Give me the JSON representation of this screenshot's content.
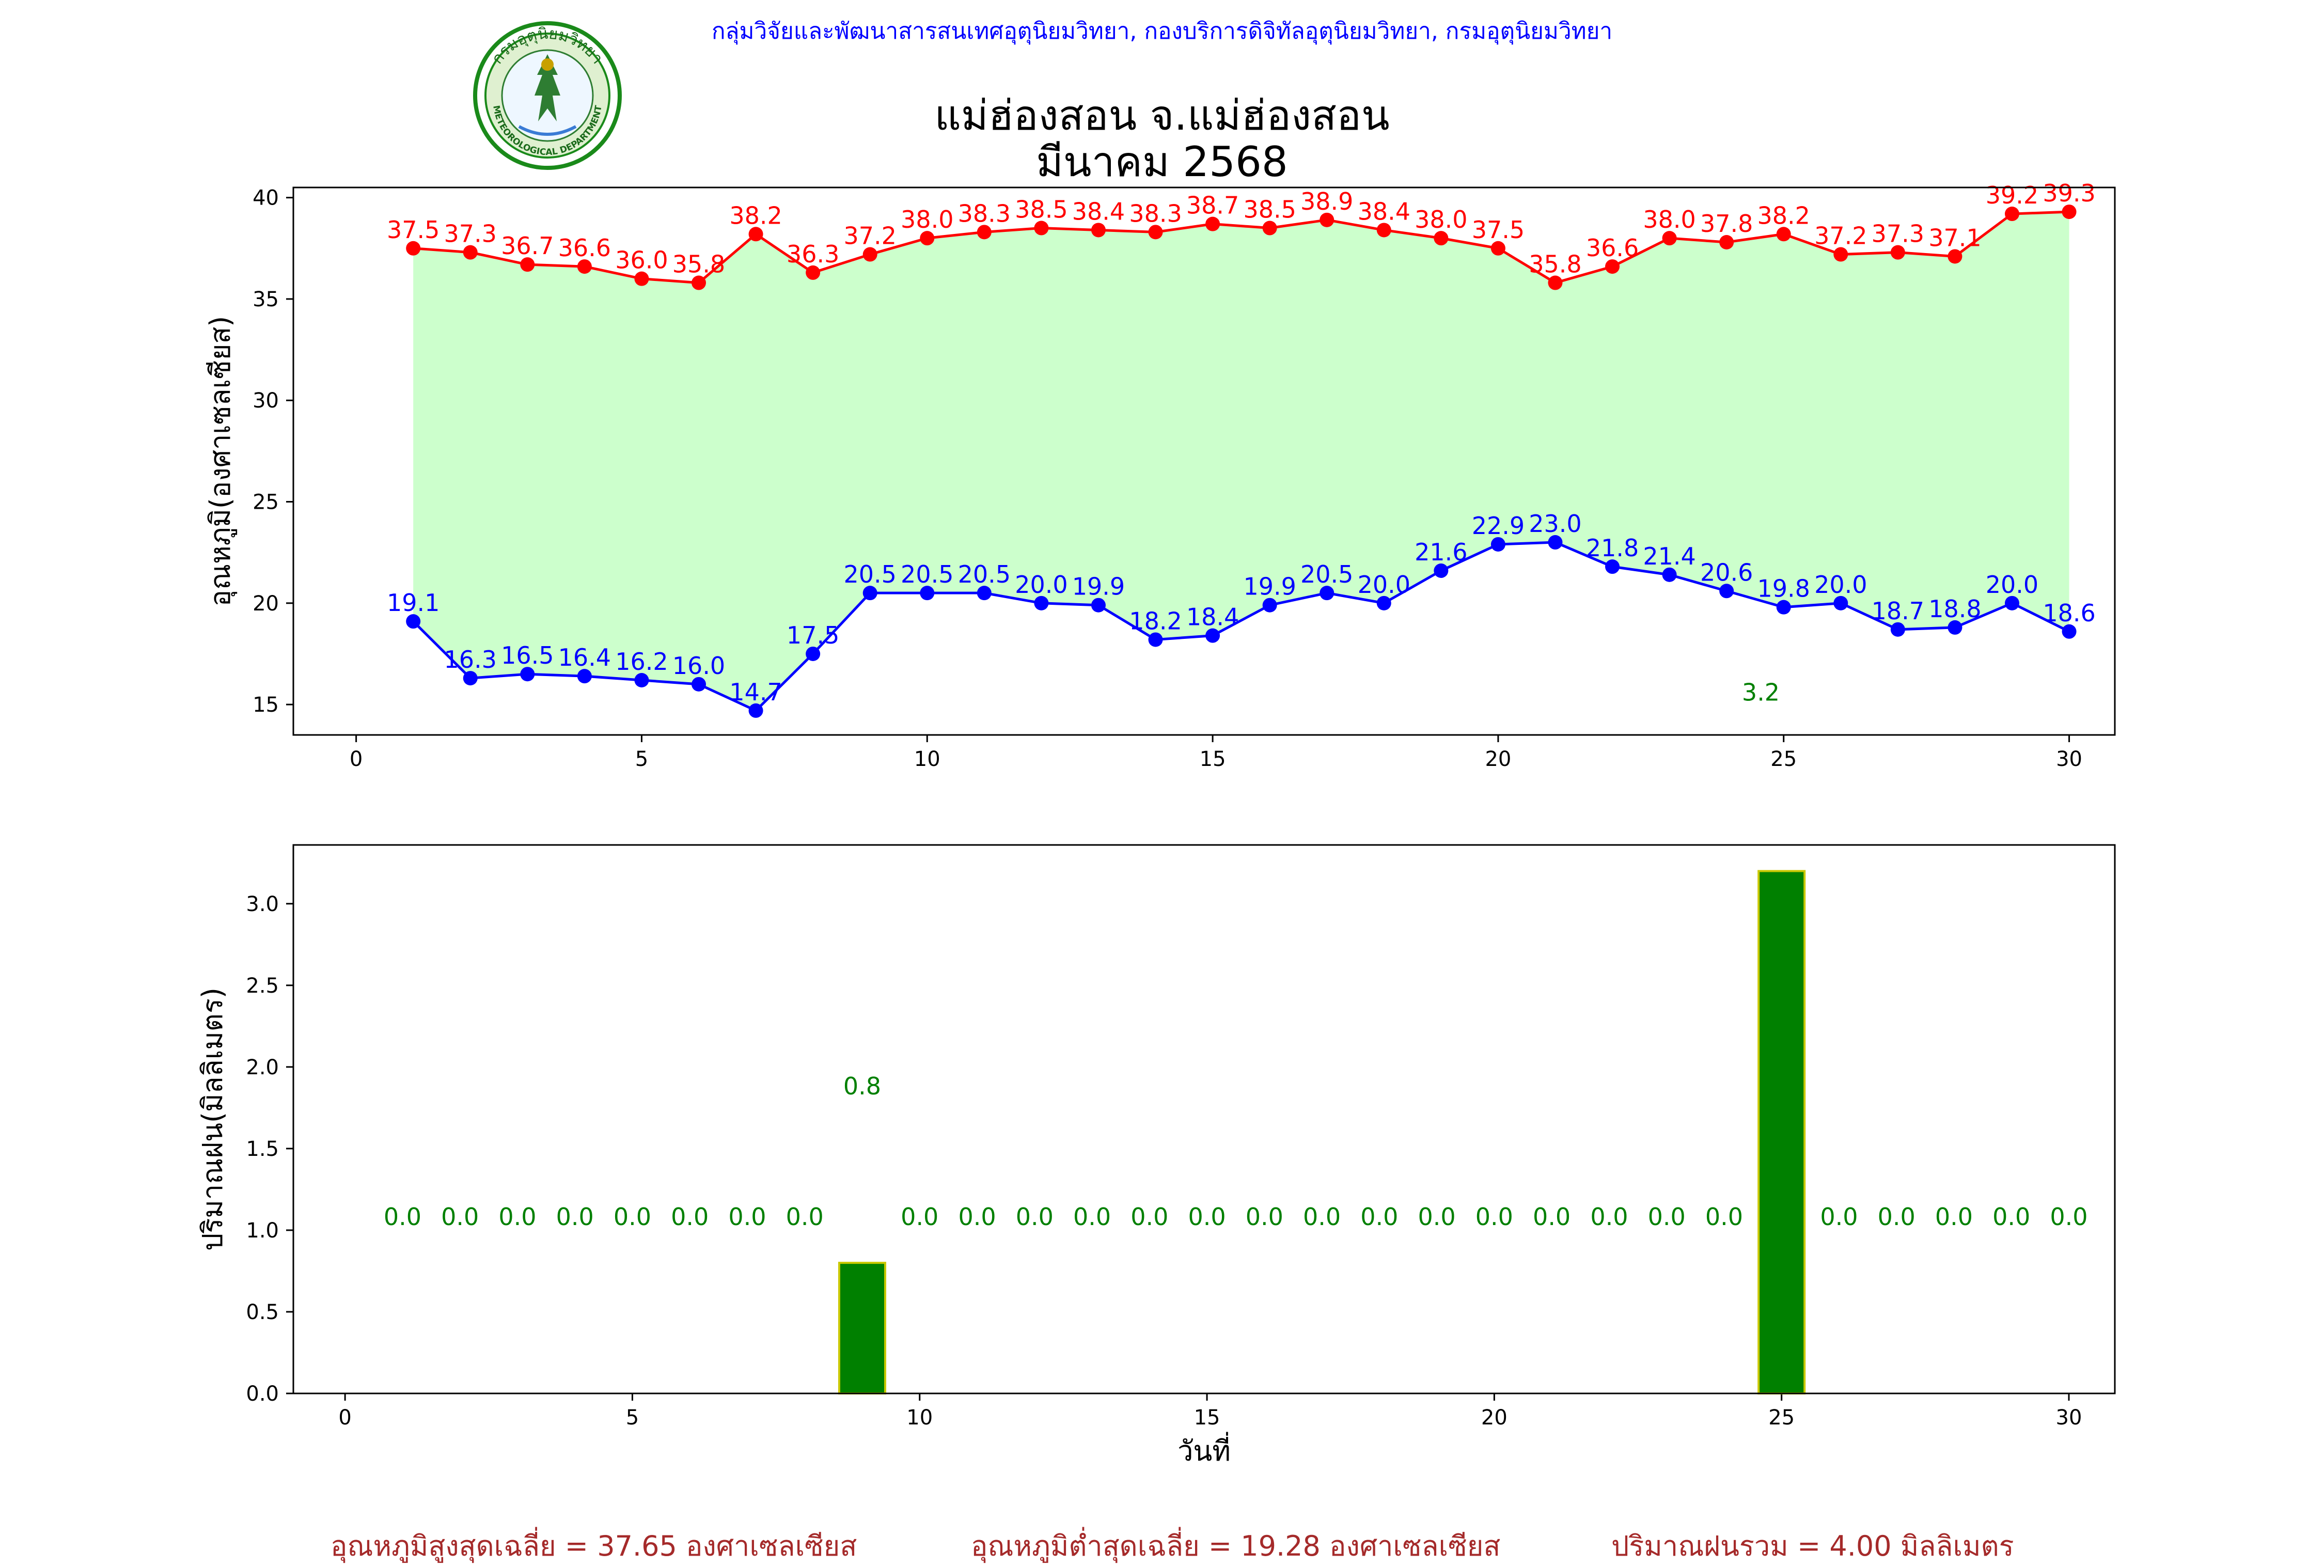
{
  "header": {
    "agency_line": "กลุ่มวิจัยและพัฒนาสารสนเทศอุตุนิยมวิทยา, กองบริการดิจิทัลอุตุนิยมวิทยา, กรมอุตุนิยมวิทยา",
    "title_line1": "แม่ฮ่องสอน จ.แม่ฮ่องสอน",
    "title_line2": "มีนาคม 2568"
  },
  "logo": {
    "text_top": "กรมอุตุนิยมวิทยา",
    "text_bottom": "METEOROLOGICAL DEPARTMENT",
    "colors": {
      "ring": "#1a8a1a",
      "inner": "#e8f5e0",
      "figure": "#2e7d32"
    }
  },
  "colors": {
    "tmax": "#ff0000",
    "tmin": "#0000ff",
    "fill": "#ccffcc",
    "rain_bar": "#008000",
    "rain_edge": "#c8c800",
    "rain_label": "#008000",
    "footer": "#a52a2a"
  },
  "chart_data": [
    {
      "type": "line",
      "ylabel": "อุณหภูมิ(องศาเซลเซียส)",
      "xlim": [
        -1.1,
        30.8
      ],
      "ylim": [
        13.5,
        40.5
      ],
      "xticks": [
        0,
        5,
        10,
        15,
        20,
        25,
        30
      ],
      "yticks": [
        15,
        20,
        25,
        30,
        35,
        40
      ],
      "x": [
        1,
        2,
        3,
        4,
        5,
        6,
        7,
        8,
        9,
        10,
        11,
        12,
        13,
        14,
        15,
        16,
        17,
        18,
        19,
        20,
        21,
        22,
        23,
        24,
        25,
        26,
        27,
        28,
        29,
        30
      ],
      "series": [
        {
          "key": "tmax",
          "values": [
            37.5,
            37.3,
            36.7,
            36.6,
            36.0,
            35.8,
            38.2,
            36.3,
            37.2,
            38.0,
            38.3,
            38.5,
            38.4,
            38.3,
            38.7,
            38.5,
            38.9,
            38.4,
            38.0,
            37.5,
            35.8,
            36.6,
            38.0,
            37.8,
            38.2,
            37.2,
            37.3,
            37.1,
            39.2,
            39.3
          ]
        },
        {
          "key": "tmin",
          "values": [
            19.1,
            16.3,
            16.5,
            16.4,
            16.2,
            16.0,
            14.7,
            17.5,
            20.5,
            20.5,
            20.5,
            20.0,
            19.9,
            18.2,
            18.4,
            19.9,
            20.5,
            20.0,
            21.6,
            22.9,
            23.0,
            21.8,
            21.4,
            20.6,
            19.8,
            20.0,
            18.7,
            18.8,
            20.0,
            18.6
          ]
        }
      ],
      "annotation": {
        "x": 24.6,
        "y": 15.2,
        "text": "3.2"
      }
    },
    {
      "type": "bar",
      "xlabel": "วันที่",
      "ylabel": "ปริมาณฝน(มิลลิเมตร)",
      "xlim": [
        -0.9,
        30.8
      ],
      "ylim": [
        0,
        3.36
      ],
      "xticks": [
        0,
        5,
        10,
        15,
        20,
        25,
        30
      ],
      "yticks": [
        0.0,
        0.5,
        1.0,
        1.5,
        2.0,
        2.5,
        3.0
      ],
      "x": [
        1,
        2,
        3,
        4,
        5,
        6,
        7,
        8,
        9,
        10,
        11,
        12,
        13,
        14,
        15,
        16,
        17,
        18,
        19,
        20,
        21,
        22,
        23,
        24,
        25,
        26,
        27,
        28,
        29,
        30
      ],
      "values": [
        0,
        0,
        0,
        0,
        0,
        0,
        0,
        0,
        0.8,
        0,
        0,
        0,
        0,
        0,
        0,
        0,
        0,
        0,
        0,
        0,
        0,
        0,
        0,
        0,
        3.2,
        0,
        0,
        0,
        0,
        0
      ],
      "labels": [
        "0.0",
        "0.0",
        "0.0",
        "0.0",
        "0.0",
        "0.0",
        "0.0",
        "0.0",
        "0.8",
        "0.0",
        "0.0",
        "0.0",
        "0.0",
        "0.0",
        "0.0",
        "0.0",
        "0.0",
        "0.0",
        "0.0",
        "0.0",
        "0.0",
        "0.0",
        "0.0",
        "0.0",
        "",
        "0.0",
        "0.0",
        "0.0",
        "0.0",
        "0.0"
      ]
    }
  ],
  "footer": {
    "avg_max": "อุณหภูมิสูงสุดเฉลี่ย = 37.65 องศาเซลเซียส",
    "avg_min": "อุณหภูมิต่ำสุดเฉลี่ย = 19.28 องศาเซลเซียส",
    "total_rain": "ปริมาณฝนรวม = 4.00 มิลลิเมตร"
  }
}
